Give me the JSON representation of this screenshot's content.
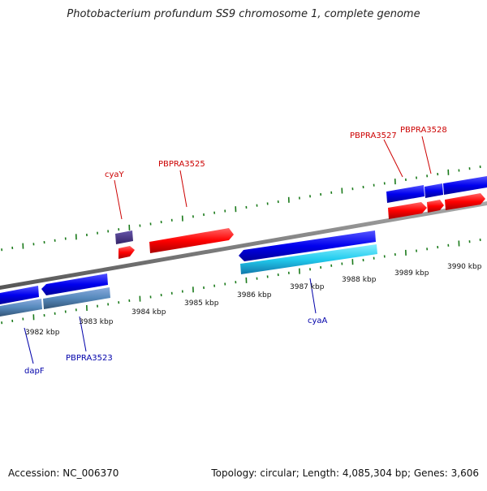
{
  "title": "Photobacterium profundum SS9 chromosome 1, complete genome",
  "footer": {
    "accession": "Accession: NC_006370",
    "info": "Topology: circular; Length: 4,085,304 bp; Genes: 3,606"
  },
  "colors": {
    "backbone": "#7a7a7a",
    "tick": "#1a7a1a",
    "gene_red": "#ff0000",
    "gene_blue": "#0000ee",
    "gene_lightblue": "#22ccee",
    "gene_steel": "#5588bb",
    "gene_purple": "#443388",
    "label_red": "#cc0000",
    "label_blue": "#0000aa"
  },
  "scale_labels": [
    "3982 kbp",
    "3983 kbp",
    "3984 kbp",
    "3985 kbp",
    "3986 kbp",
    "3987 kbp",
    "3988 kbp",
    "3989 kbp",
    "3990 kbp"
  ],
  "gene_labels": {
    "cyaY": "cyaY",
    "pbpra3525": "PBPRA3525",
    "pbpra3527": "PBPRA3527",
    "pbpra3528": "PBPRA3528",
    "cyaA": "cyaA",
    "dapF": "dapF",
    "pbpra3523": "PBPRA3523"
  }
}
